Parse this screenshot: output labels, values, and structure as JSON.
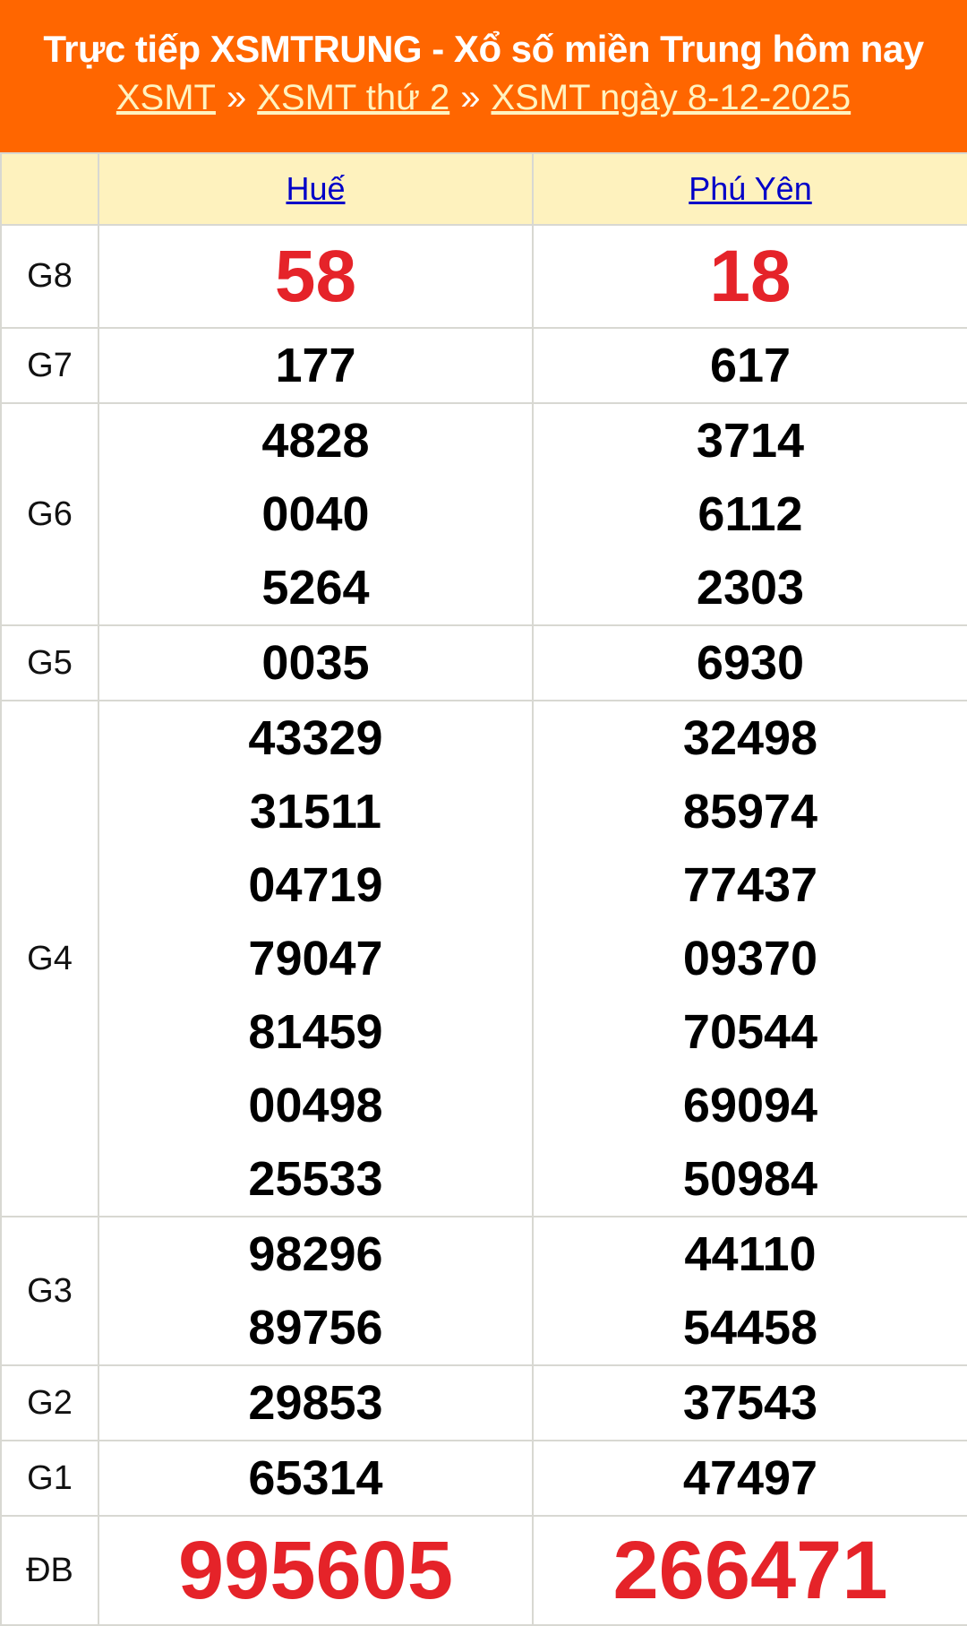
{
  "header": {
    "title": "Trực tiếp XSMTRUNG - Xổ số miền Trung hôm nay",
    "breadcrumbs": [
      "XSMT",
      "XSMT thứ 2",
      "XSMT ngày 8-12-2025"
    ],
    "separator": "»"
  },
  "table": {
    "provinces": [
      "Huế",
      "Phú Yên"
    ],
    "rows": [
      {
        "label": "G8",
        "values": [
          [
            "58"
          ],
          [
            "18"
          ]
        ]
      },
      {
        "label": "G7",
        "values": [
          [
            "177"
          ],
          [
            "617"
          ]
        ]
      },
      {
        "label": "G6",
        "values": [
          [
            "4828",
            "0040",
            "5264"
          ],
          [
            "3714",
            "6112",
            "2303"
          ]
        ]
      },
      {
        "label": "G5",
        "values": [
          [
            "0035"
          ],
          [
            "6930"
          ]
        ]
      },
      {
        "label": "G4",
        "values": [
          [
            "43329",
            "31511",
            "04719",
            "79047",
            "81459",
            "00498",
            "25533"
          ],
          [
            "32498",
            "85974",
            "77437",
            "09370",
            "70544",
            "69094",
            "50984"
          ]
        ]
      },
      {
        "label": "G3",
        "values": [
          [
            "98296",
            "89756"
          ],
          [
            "44110",
            "54458"
          ]
        ]
      },
      {
        "label": "G2",
        "values": [
          [
            "29853"
          ],
          [
            "37543"
          ]
        ]
      },
      {
        "label": "G1",
        "values": [
          [
            "65314"
          ],
          [
            "47497"
          ]
        ]
      },
      {
        "label": "ĐB",
        "values": [
          [
            "995605"
          ],
          [
            "266471"
          ]
        ]
      }
    ]
  },
  "colors": {
    "header_bg": "#ff6600",
    "table_head_bg": "#fef2be",
    "highlight": "#e52329",
    "link": "#0000c8"
  }
}
